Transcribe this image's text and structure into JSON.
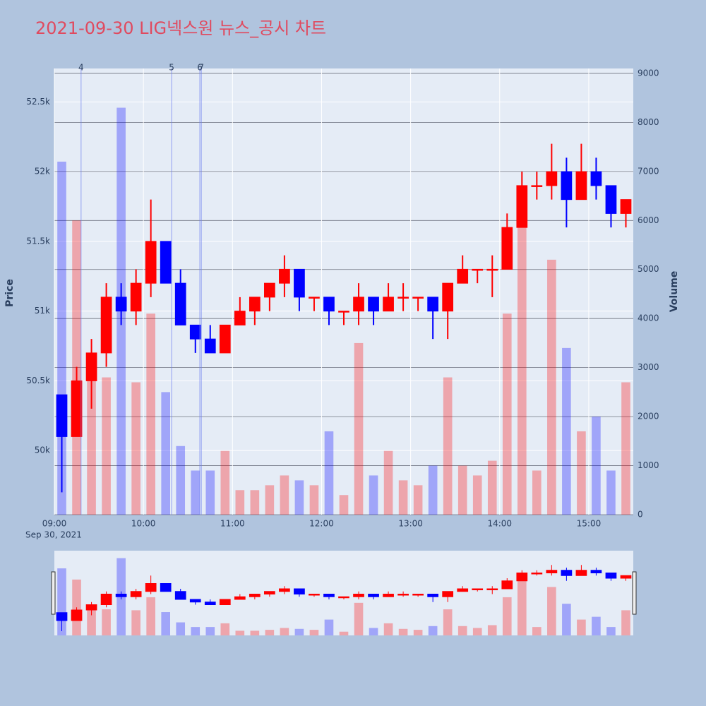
{
  "chart_data": {
    "type": "candlestick",
    "title": "2021-09-30 LIG넥스원 뉴스_공시 차트",
    "ylabel": "Price",
    "y2label": "Volume",
    "x_date_label": "Sep 30, 2021",
    "increasing_color": "#ff0000",
    "decreasing_color": "#0000ff",
    "grid": true,
    "rangeslider": true,
    "x": [
      "2021-09-30 09:00",
      "2021-09-30 09:10",
      "2021-09-30 09:20",
      "2021-09-30 09:30",
      "2021-09-30 09:40",
      "2021-09-30 09:50",
      "2021-09-30 10:00",
      "2021-09-30 10:10",
      "2021-09-30 10:20",
      "2021-09-30 10:30",
      "2021-09-30 10:40",
      "2021-09-30 10:50",
      "2021-09-30 11:00",
      "2021-09-30 11:10",
      "2021-09-30 11:20",
      "2021-09-30 11:30",
      "2021-09-30 11:40",
      "2021-09-30 11:50",
      "2021-09-30 12:00",
      "2021-09-30 12:10",
      "2021-09-30 12:20",
      "2021-09-30 12:30",
      "2021-09-30 12:40",
      "2021-09-30 12:50",
      "2021-09-30 13:00",
      "2021-09-30 13:10",
      "2021-09-30 13:20",
      "2021-09-30 13:30",
      "2021-09-30 13:40",
      "2021-09-30 13:50",
      "2021-09-30 14:00",
      "2021-09-30 14:10",
      "2021-09-30 14:20",
      "2021-09-30 14:30",
      "2021-09-30 14:40",
      "2021-09-30 14:50",
      "2021-09-30 15:00",
      "2021-09-30 15:10",
      "2021-09-30 15:20"
    ],
    "open": [
      50400,
      50100,
      50500,
      50700,
      51100,
      51000,
      51200,
      51500,
      51200,
      50900,
      50800,
      50700,
      50900,
      51000,
      51100,
      51200,
      51300,
      51100,
      51100,
      51000,
      51000,
      51100,
      51000,
      51100,
      51100,
      51100,
      51000,
      51200,
      51300,
      51300,
      51300,
      51600,
      51900,
      51900,
      52000,
      51800,
      52000,
      51900,
      51700
    ],
    "high": [
      50400,
      50600,
      50800,
      51200,
      51200,
      51300,
      51800,
      51500,
      51300,
      50900,
      50900,
      50900,
      51100,
      51100,
      51200,
      51400,
      51300,
      51100,
      51100,
      51000,
      51200,
      51100,
      51200,
      51200,
      51100,
      51100,
      51200,
      51400,
      51300,
      51400,
      51700,
      52000,
      52000,
      52200,
      52100,
      52200,
      52100,
      51900,
      51800
    ],
    "low": [
      49700,
      50100,
      50300,
      50600,
      50900,
      50900,
      51100,
      51200,
      50900,
      50700,
      50700,
      50700,
      50900,
      50900,
      51000,
      51100,
      51000,
      51000,
      50900,
      50900,
      50900,
      50900,
      51000,
      51000,
      51000,
      50800,
      50800,
      51200,
      51200,
      51100,
      51300,
      51600,
      51800,
      51800,
      51600,
      51800,
      51800,
      51600,
      51600
    ],
    "close": [
      50100,
      50500,
      50700,
      51100,
      51000,
      51200,
      51500,
      51200,
      50900,
      50800,
      50700,
      50900,
      51000,
      51100,
      51200,
      51300,
      51100,
      51100,
      51000,
      51000,
      51100,
      51000,
      51100,
      51100,
      51100,
      51000,
      51200,
      51300,
      51300,
      51300,
      51600,
      51900,
      51900,
      52000,
      51800,
      52000,
      51900,
      51700,
      51800
    ],
    "volume": [
      7200,
      6000,
      3000,
      2800,
      8300,
      2700,
      4100,
      2500,
      1400,
      900,
      900,
      1300,
      500,
      500,
      600,
      800,
      700,
      600,
      1700,
      400,
      3500,
      800,
      1300,
      700,
      600,
      1000,
      2800,
      1000,
      800,
      1100,
      4100,
      6600,
      900,
      5200,
      3400,
      1700,
      2000,
      900,
      2700
    ],
    "xlim": [
      "2021-09-30 09:00",
      "2021-09-30 15:30"
    ],
    "xticks": [
      {
        "value": "2021-09-30 09:00",
        "label": "09:00"
      },
      {
        "value": "2021-09-30 10:00",
        "label": "10:00"
      },
      {
        "value": "2021-09-30 11:00",
        "label": "11:00"
      },
      {
        "value": "2021-09-30 12:00",
        "label": "12:00"
      },
      {
        "value": "2021-09-30 13:00",
        "label": "13:00"
      },
      {
        "value": "2021-09-30 14:00",
        "label": "14:00"
      },
      {
        "value": "2021-09-30 15:00",
        "label": "15:00"
      }
    ],
    "ylim": [
      49540,
      52740
    ],
    "yticks": [
      {
        "value": 50000,
        "label": "50k"
      },
      {
        "value": 50500,
        "label": "50.5k"
      },
      {
        "value": 51000,
        "label": "51k"
      },
      {
        "value": 51500,
        "label": "51.5k"
      },
      {
        "value": 52000,
        "label": "52k"
      },
      {
        "value": 52500,
        "label": "52.5k"
      }
    ],
    "y2lim": [
      0,
      9100
    ],
    "y2ticks": [
      0,
      1000,
      2000,
      3000,
      4000,
      5000,
      6000,
      7000,
      8000,
      9000
    ],
    "annotations": [
      {
        "x": "2021-09-30 09:18",
        "label": "4"
      },
      {
        "x": "2021-09-30 10:19",
        "label": "5"
      },
      {
        "x": "2021-09-30 10:38",
        "label": "6"
      },
      {
        "x": "2021-09-30 10:39",
        "label": "7"
      }
    ]
  }
}
